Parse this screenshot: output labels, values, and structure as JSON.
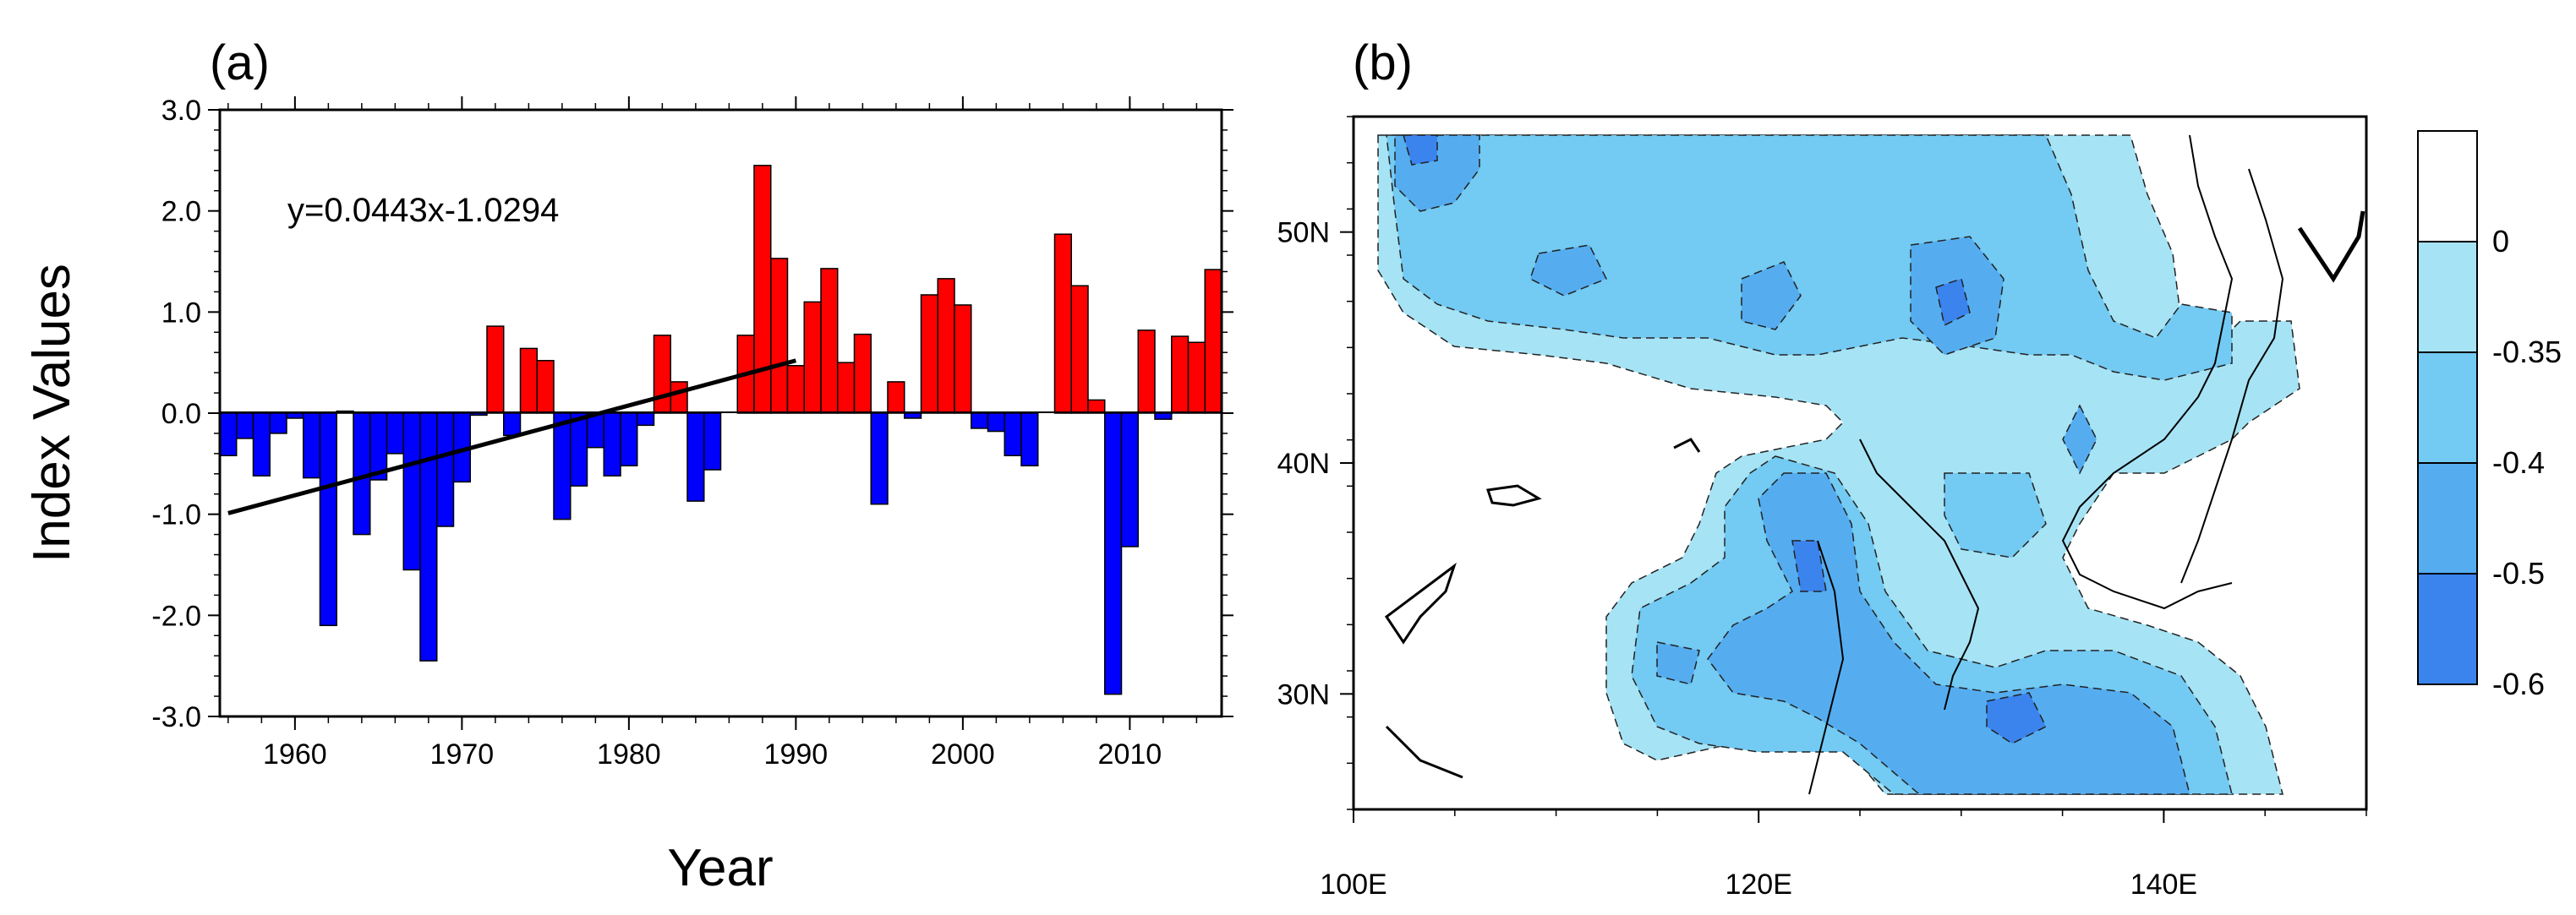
{
  "figure": {
    "panel_a_label": "(a)",
    "panel_b_label": "(b)"
  },
  "chart_data": [
    {
      "type": "bar",
      "panel": "(a)",
      "title": "",
      "xlabel": "Year",
      "ylabel": "Index Values",
      "xlim": [
        1955.5,
        2015.5
      ],
      "ylim": [
        -3.0,
        3.0
      ],
      "x_ticks": [
        1960,
        1970,
        1980,
        1990,
        2000,
        2010
      ],
      "x_tick_labels": [
        "1960",
        "1970",
        "1980",
        "1990",
        "2000",
        "2010"
      ],
      "y_ticks": [
        3.0,
        2.0,
        1.0,
        0.0,
        -1.0,
        -2.0,
        -3.0
      ],
      "y_tick_labels": [
        "3.0",
        "2.0",
        "1.0",
        "0.0",
        "-1.0",
        "-2.0",
        "-3.0"
      ],
      "positive_color": "#ff0000",
      "negative_color": "#0000ff",
      "categories": [
        1956,
        1957,
        1958,
        1959,
        1960,
        1961,
        1962,
        1963,
        1964,
        1965,
        1966,
        1967,
        1968,
        1969,
        1970,
        1971,
        1972,
        1973,
        1974,
        1975,
        1976,
        1977,
        1978,
        1979,
        1980,
        1981,
        1982,
        1983,
        1984,
        1985,
        1986,
        1987,
        1988,
        1989,
        1990,
        1991,
        1992,
        1993,
        1994,
        1995,
        1996,
        1997,
        1998,
        1999,
        2000,
        2001,
        2002,
        2003,
        2004,
        2005,
        2006,
        2007,
        2008,
        2009,
        2010,
        2011,
        2012,
        2013,
        2014,
        2015
      ],
      "values": [
        -0.42,
        -0.25,
        -0.62,
        -0.2,
        -0.05,
        -0.64,
        -2.1,
        0.02,
        -1.2,
        -0.66,
        -0.4,
        -1.55,
        -2.45,
        -1.12,
        -0.68,
        -0.02,
        0.86,
        -0.22,
        0.64,
        0.52,
        -1.05,
        -0.72,
        -0.34,
        -0.62,
        -0.52,
        -0.12,
        0.77,
        0.31,
        -0.87,
        -0.56,
        0.0,
        0.77,
        2.45,
        1.53,
        0.47,
        1.1,
        1.43,
        0.5,
        0.78,
        -0.9,
        0.31,
        -0.05,
        1.17,
        1.33,
        1.07,
        -0.15,
        -0.18,
        -0.42,
        -0.52,
        0.0,
        1.77,
        1.26,
        0.13,
        -2.78,
        -1.32,
        0.82,
        -0.06,
        0.76,
        0.7,
        1.42
      ],
      "trend": {
        "equation": "y=0.0443x-1.0294",
        "x_range": [
          1956,
          1990
        ],
        "y_range": [
          -0.99,
          0.52
        ]
      }
    },
    {
      "type": "contour-map",
      "panel": "(b)",
      "title": "",
      "x_ticks": [
        "100E",
        "120E",
        "140E"
      ],
      "x_tick_values": [
        100,
        120,
        140
      ],
      "y_ticks": [
        "30N",
        "40N",
        "50N"
      ],
      "y_tick_values": [
        30,
        40,
        50
      ],
      "xlim": [
        100,
        150
      ],
      "ylim": [
        25,
        55
      ],
      "contour_levels": [
        -0.6,
        -0.5,
        -0.4,
        -0.35,
        0
      ],
      "colorbar_labels": [
        "0",
        "-0.35",
        "-0.4",
        "-0.5",
        "-0.6"
      ],
      "colors": [
        "#ffffff",
        "#a6e3f5",
        "#73caf2",
        "#55adf0",
        "#3b84ee"
      ]
    }
  ]
}
